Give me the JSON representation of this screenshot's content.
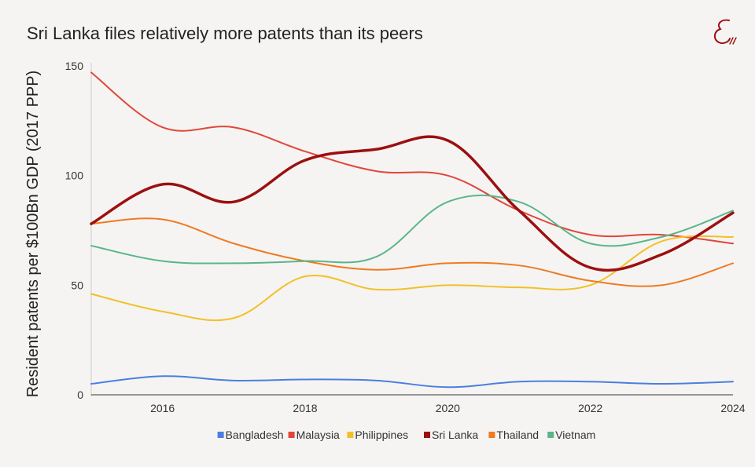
{
  "header": {
    "title": "Sri Lanka files relatively more patents than its peers",
    "logo_text": "E"
  },
  "chart_data": {
    "type": "line",
    "title": "Sri Lanka files relatively more patents than its peers",
    "xlabel": "",
    "ylabel": "Resident patents per $100Bn GDP (2017 PPP)",
    "xlim": [
      2015,
      2024
    ],
    "ylim": [
      0,
      150
    ],
    "x_ticks": [
      2016,
      2018,
      2020,
      2022,
      2024
    ],
    "y_ticks": [
      0,
      50,
      100,
      150
    ],
    "grid": false,
    "legend_position": "bottom",
    "x": [
      2015,
      2016,
      2017,
      2018,
      2019,
      2020,
      2021,
      2022,
      2023,
      2024
    ],
    "series": [
      {
        "name": "Bangladesh",
        "color": "#4a7fe0",
        "width": 2,
        "values": [
          5,
          8.5,
          6.5,
          7,
          6.5,
          3.5,
          6,
          6,
          5,
          6
        ]
      },
      {
        "name": "Malaysia",
        "color": "#e0473b",
        "width": 2,
        "values": [
          147,
          122,
          122,
          111,
          102,
          100,
          84,
          73,
          73,
          69
        ]
      },
      {
        "name": "Philippines",
        "color": "#f2c028",
        "width": 2,
        "values": [
          46,
          38,
          35,
          54,
          48,
          50,
          49,
          50,
          70,
          72
        ]
      },
      {
        "name": "Sri Lanka",
        "color": "#9b1010",
        "width": 3.5,
        "values": [
          78,
          96,
          88,
          107,
          112,
          116,
          84,
          58,
          64,
          83
        ]
      },
      {
        "name": "Thailand",
        "color": "#f07a22",
        "width": 2,
        "values": [
          78,
          80,
          69,
          61,
          57,
          60,
          59,
          52,
          50,
          60
        ]
      },
      {
        "name": "Vietnam",
        "color": "#5ab58a",
        "width": 2,
        "values": [
          68,
          61,
          60,
          61,
          63,
          88,
          88,
          69,
          72,
          84
        ]
      }
    ]
  }
}
